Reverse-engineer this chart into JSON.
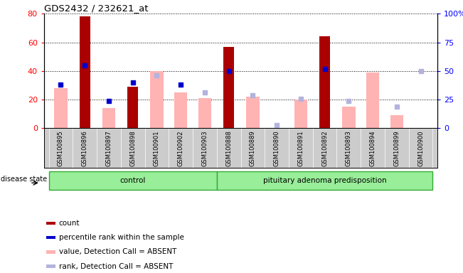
{
  "title": "GDS2432 / 232621_at",
  "samples": [
    "GSM100895",
    "GSM100896",
    "GSM100897",
    "GSM100898",
    "GSM100901",
    "GSM100902",
    "GSM100903",
    "GSM100888",
    "GSM100889",
    "GSM100890",
    "GSM100891",
    "GSM100892",
    "GSM100893",
    "GSM100894",
    "GSM100899",
    "GSM100900"
  ],
  "groups": [
    {
      "label": "control",
      "start": 0,
      "end": 7
    },
    {
      "label": "pituitary adenoma predisposition",
      "start": 7,
      "end": 16
    }
  ],
  "disease_state_label": "disease state",
  "count_values": [
    0,
    78,
    0,
    29,
    0,
    0,
    0,
    57,
    0,
    0,
    0,
    64,
    0,
    0,
    0,
    0
  ],
  "percentile_rank_values": [
    38,
    55,
    24,
    40,
    null,
    38,
    null,
    50,
    null,
    null,
    null,
    52,
    null,
    null,
    null,
    null
  ],
  "value_absent": [
    28,
    null,
    14,
    null,
    40,
    25,
    21,
    null,
    22,
    null,
    20,
    null,
    15,
    39,
    9,
    null
  ],
  "rank_absent": [
    null,
    null,
    null,
    null,
    46,
    null,
    31,
    null,
    29,
    3,
    26,
    null,
    24,
    null,
    19,
    50
  ],
  "ylim_left": [
    0,
    80
  ],
  "ylim_right": [
    0,
    100
  ],
  "yticks_left": [
    0,
    20,
    40,
    60,
    80
  ],
  "yticks_right": [
    0,
    25,
    50,
    75,
    100
  ],
  "count_color": "#aa0000",
  "percentile_color": "#0000cc",
  "value_absent_color": "#ffb3b3",
  "rank_absent_color": "#b3b3dd",
  "group_color": "#99ee99",
  "group_edge_color": "#33aa33",
  "sample_bg_color": "#cccccc",
  "legend_items": [
    {
      "label": "count",
      "color": "#aa0000"
    },
    {
      "label": "percentile rank within the sample",
      "color": "#0000cc"
    },
    {
      "label": "value, Detection Call = ABSENT",
      "color": "#ffb3b3"
    },
    {
      "label": "rank, Detection Call = ABSENT",
      "color": "#b3b3dd"
    }
  ]
}
